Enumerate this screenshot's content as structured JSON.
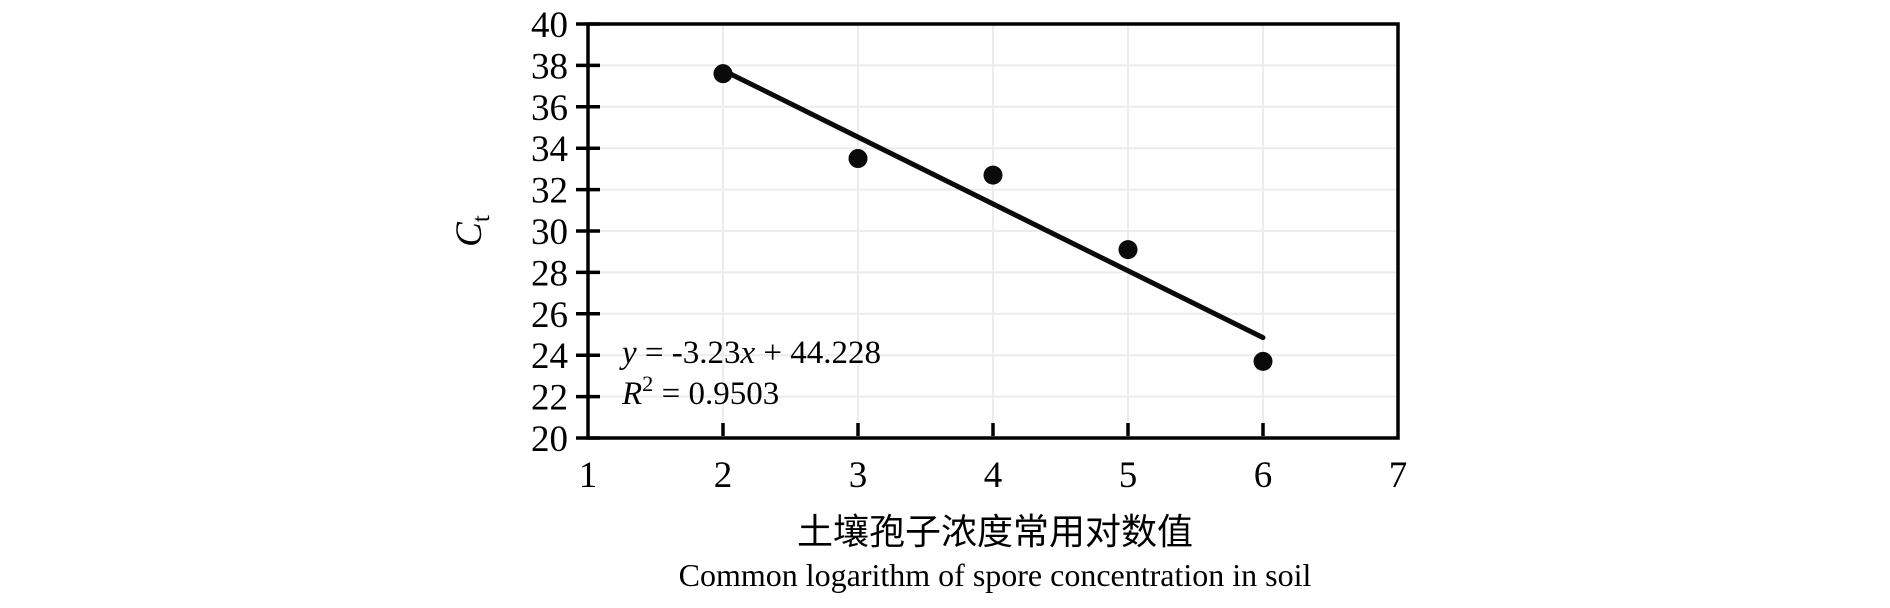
{
  "figure": {
    "background": "#ffffff"
  },
  "chart_data": {
    "type": "scatter",
    "x": [
      2,
      3,
      4,
      5,
      6
    ],
    "y": [
      37.6,
      33.5,
      32.7,
      29.1,
      23.7
    ],
    "xlim": [
      1,
      7
    ],
    "ylim": [
      20,
      40
    ],
    "x_ticks": [
      "1",
      "2",
      "3",
      "4",
      "5",
      "6",
      "7"
    ],
    "y_ticks": [
      "20",
      "22",
      "24",
      "26",
      "28",
      "30",
      "32",
      "34",
      "36",
      "38",
      "40"
    ],
    "grid": "on",
    "legend": "none",
    "marker": "filled-circle",
    "trendline": {
      "slope": -3.23,
      "intercept": 44.228,
      "x_start": 2,
      "x_end": 6
    },
    "equation_text": "y = -3.23x + 44.228",
    "r_squared_text": "R² = 0.9503",
    "equation_parts": [
      {
        "text": "y",
        "style": "italic"
      },
      {
        "text": " = -3.23",
        "style": "normal"
      },
      {
        "text": "x",
        "style": "italic"
      },
      {
        "text": " + 44.228",
        "style": "normal"
      }
    ],
    "r_squared_parts": [
      {
        "text": "R",
        "style": "italic"
      },
      {
        "text": "2",
        "style": "super"
      },
      {
        "text": " = 0.9503",
        "style": "normal"
      }
    ],
    "ylabel": "Ct",
    "ylabel_parts": [
      {
        "text": "C",
        "style": "italic"
      },
      {
        "text": "t",
        "style": "sub"
      }
    ],
    "xlabel_zh": "土壤孢子浓度常用对数值",
    "xlabel_en": "Common logarithm of spore concentration in soil",
    "colors": {
      "point": "#0a0a0a",
      "trend_line": "#0a0a0a",
      "axis": "#000000",
      "grid": "#ececec",
      "text": "#000000",
      "background": "#ffffff"
    }
  }
}
